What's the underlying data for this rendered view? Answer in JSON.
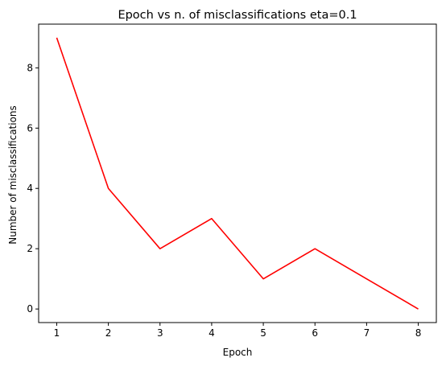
{
  "chart_data": {
    "type": "line",
    "title": "Epoch vs n. of misclassifications eta=0.1",
    "xlabel": "Epoch",
    "ylabel": "Number of misclassifications",
    "x": [
      1,
      2,
      3,
      4,
      5,
      6,
      7,
      8
    ],
    "series": [
      {
        "values": [
          9,
          4,
          2,
          3,
          1,
          2,
          1,
          0
        ],
        "color": "#ff0000"
      }
    ],
    "xlim": [
      0.65,
      8.35
    ],
    "ylim": [
      -0.45,
      9.45
    ],
    "xticks": [
      1,
      2,
      3,
      4,
      5,
      6,
      7,
      8
    ],
    "yticks": [
      0,
      2,
      4,
      6,
      8
    ],
    "grid": false,
    "legend": "none"
  }
}
